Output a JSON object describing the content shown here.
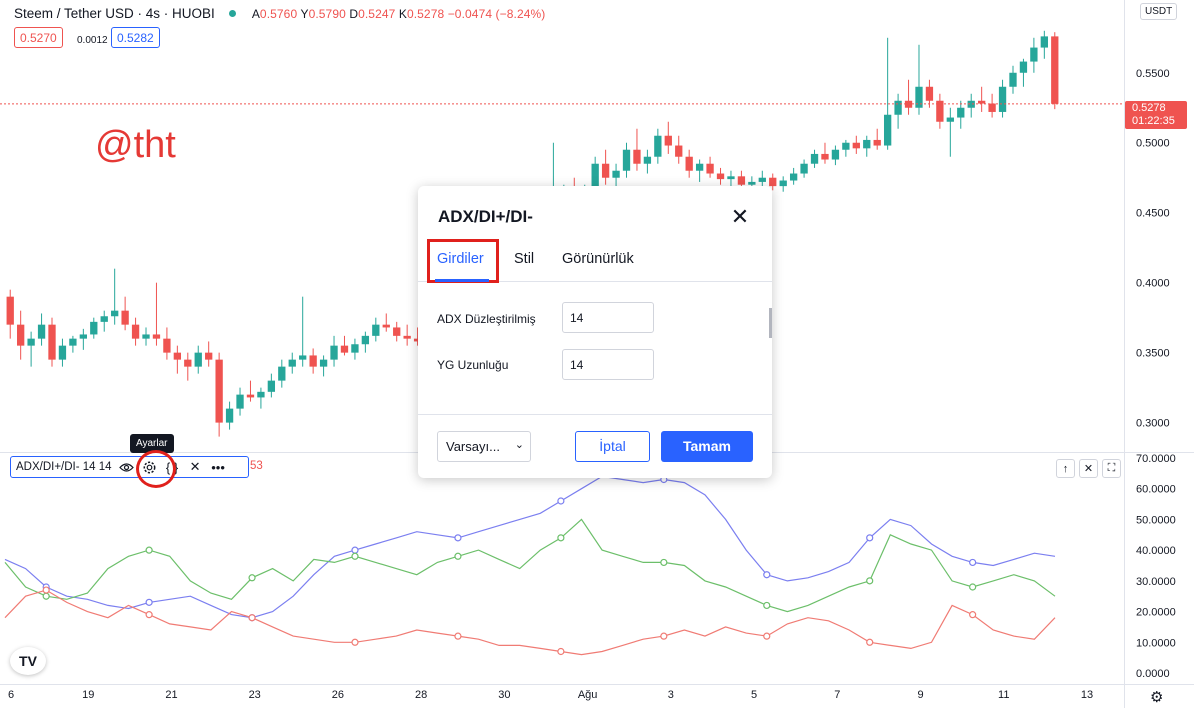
{
  "header": {
    "symbol": "Steem / Tether USD · 4s · HUOBI",
    "ohlc": {
      "open_label": "A",
      "open": "0.5760",
      "high_label": "Y",
      "high": "0.5790",
      "low_label": "D",
      "low": "0.5247",
      "close_label": "K",
      "close": "0.5278",
      "change": "−0.0474 (−8.24%)"
    },
    "sell_price": "0.5270",
    "spread": "0.0012",
    "buy_price": "0.5282"
  },
  "watermark": "@tht",
  "currency": "USDT",
  "last_price": {
    "price": "0.5278",
    "countdown": "01:22:35"
  },
  "tooltip": "Ayarlar",
  "indicator": {
    "label": "ADX/DI+/DI- 14 14",
    "value_suffix": "53",
    "icons": [
      "eye-icon",
      "gear-icon",
      "braces-icon",
      "close-icon",
      "more-icon"
    ]
  },
  "dialog": {
    "title": "ADX/DI+/DI-",
    "tabs": [
      {
        "label": "Girdiler",
        "active": true
      },
      {
        "label": "Stil",
        "active": false
      },
      {
        "label": "Görünürlük",
        "active": false
      }
    ],
    "fields": [
      {
        "label": "ADX Düzleştirilmiş",
        "value": "14"
      },
      {
        "label": "YG Uzunluğu",
        "value": "14"
      }
    ],
    "defaults_label": "Varsayı...",
    "cancel_label": "İptal",
    "ok_label": "Tamam"
  },
  "colors": {
    "up": "#26a69a",
    "down": "#ef5350",
    "accent": "#2962ff",
    "adx": "#7b7ff0",
    "diplus": "#6cbf6a",
    "diminus": "#f07b74"
  },
  "chart_data": [
    {
      "type": "candlestick",
      "symbol": "Steem / Tether USD",
      "y_ticks": [
        "0.5500",
        "0.5000",
        "0.4500",
        "0.4000",
        "0.3500",
        "0.3000"
      ],
      "y_range": [
        0.279,
        0.602
      ],
      "last_price": 0.5278,
      "candles": [
        [
          0.39,
          0.395,
          0.36,
          0.37
        ],
        [
          0.37,
          0.38,
          0.345,
          0.355
        ],
        [
          0.355,
          0.365,
          0.34,
          0.36
        ],
        [
          0.36,
          0.378,
          0.355,
          0.37
        ],
        [
          0.37,
          0.375,
          0.34,
          0.345
        ],
        [
          0.345,
          0.36,
          0.34,
          0.355
        ],
        [
          0.355,
          0.362,
          0.35,
          0.36
        ],
        [
          0.36,
          0.367,
          0.352,
          0.363
        ],
        [
          0.363,
          0.375,
          0.36,
          0.372
        ],
        [
          0.372,
          0.38,
          0.365,
          0.376
        ],
        [
          0.376,
          0.41,
          0.37,
          0.38
        ],
        [
          0.38,
          0.39,
          0.366,
          0.37
        ],
        [
          0.37,
          0.375,
          0.355,
          0.36
        ],
        [
          0.36,
          0.368,
          0.355,
          0.363
        ],
        [
          0.363,
          0.4,
          0.355,
          0.36
        ],
        [
          0.36,
          0.368,
          0.345,
          0.35
        ],
        [
          0.35,
          0.355,
          0.335,
          0.345
        ],
        [
          0.345,
          0.35,
          0.33,
          0.34
        ],
        [
          0.34,
          0.355,
          0.335,
          0.35
        ],
        [
          0.35,
          0.358,
          0.34,
          0.345
        ],
        [
          0.345,
          0.35,
          0.29,
          0.3
        ],
        [
          0.3,
          0.315,
          0.295,
          0.31
        ],
        [
          0.31,
          0.325,
          0.305,
          0.32
        ],
        [
          0.32,
          0.33,
          0.315,
          0.318
        ],
        [
          0.318,
          0.325,
          0.31,
          0.322
        ],
        [
          0.322,
          0.335,
          0.318,
          0.33
        ],
        [
          0.33,
          0.345,
          0.325,
          0.34
        ],
        [
          0.34,
          0.35,
          0.335,
          0.345
        ],
        [
          0.345,
          0.39,
          0.34,
          0.348
        ],
        [
          0.348,
          0.353,
          0.335,
          0.34
        ],
        [
          0.34,
          0.348,
          0.333,
          0.345
        ],
        [
          0.345,
          0.362,
          0.34,
          0.355
        ],
        [
          0.355,
          0.362,
          0.348,
          0.35
        ],
        [
          0.35,
          0.36,
          0.345,
          0.356
        ],
        [
          0.356,
          0.365,
          0.35,
          0.362
        ],
        [
          0.362,
          0.375,
          0.358,
          0.37
        ],
        [
          0.37,
          0.378,
          0.365,
          0.368
        ],
        [
          0.368,
          0.372,
          0.358,
          0.362
        ],
        [
          0.362,
          0.37,
          0.355,
          0.36
        ],
        [
          0.36,
          0.368,
          0.355,
          0.358
        ],
        [
          0.358,
          0.365,
          0.352,
          0.362
        ],
        [
          0.362,
          0.375,
          0.358,
          0.372
        ],
        [
          0.372,
          0.38,
          0.365,
          0.368
        ],
        [
          0.368,
          0.375,
          0.362,
          0.372
        ],
        [
          0.372,
          0.385,
          0.368,
          0.38
        ],
        [
          0.38,
          0.385,
          0.37,
          0.375
        ],
        [
          0.375,
          0.38,
          0.368,
          0.372
        ],
        [
          0.372,
          0.378,
          0.365,
          0.37
        ],
        [
          0.37,
          0.38,
          0.365,
          0.375
        ],
        [
          0.375,
          0.392,
          0.372,
          0.388
        ],
        [
          0.388,
          0.41,
          0.385,
          0.405
        ],
        [
          0.405,
          0.435,
          0.4,
          0.43
        ],
        [
          0.43,
          0.5,
          0.425,
          0.45
        ],
        [
          0.45,
          0.47,
          0.44,
          0.462
        ],
        [
          0.462,
          0.475,
          0.45,
          0.455
        ],
        [
          0.455,
          0.47,
          0.45,
          0.465
        ],
        [
          0.465,
          0.49,
          0.46,
          0.485
        ],
        [
          0.485,
          0.495,
          0.47,
          0.475
        ],
        [
          0.475,
          0.485,
          0.465,
          0.48
        ],
        [
          0.48,
          0.5,
          0.475,
          0.495
        ],
        [
          0.495,
          0.51,
          0.48,
          0.485
        ],
        [
          0.485,
          0.495,
          0.478,
          0.49
        ],
        [
          0.49,
          0.51,
          0.485,
          0.505
        ],
        [
          0.505,
          0.515,
          0.492,
          0.498
        ],
        [
          0.498,
          0.505,
          0.485,
          0.49
        ],
        [
          0.49,
          0.495,
          0.475,
          0.48
        ],
        [
          0.48,
          0.488,
          0.472,
          0.485
        ],
        [
          0.485,
          0.49,
          0.475,
          0.478
        ],
        [
          0.478,
          0.482,
          0.47,
          0.474
        ],
        [
          0.474,
          0.48,
          0.468,
          0.476
        ],
        [
          0.476,
          0.48,
          0.468,
          0.47
        ],
        [
          0.47,
          0.476,
          0.465,
          0.472
        ],
        [
          0.472,
          0.48,
          0.468,
          0.475
        ],
        [
          0.475,
          0.478,
          0.466,
          0.469
        ],
        [
          0.469,
          0.476,
          0.465,
          0.473
        ],
        [
          0.473,
          0.482,
          0.47,
          0.478
        ],
        [
          0.478,
          0.488,
          0.475,
          0.485
        ],
        [
          0.485,
          0.495,
          0.482,
          0.492
        ],
        [
          0.492,
          0.5,
          0.485,
          0.488
        ],
        [
          0.488,
          0.498,
          0.484,
          0.495
        ],
        [
          0.495,
          0.502,
          0.49,
          0.5
        ],
        [
          0.5,
          0.505,
          0.492,
          0.496
        ],
        [
          0.496,
          0.505,
          0.49,
          0.502
        ],
        [
          0.502,
          0.51,
          0.495,
          0.498
        ],
        [
          0.498,
          0.575,
          0.495,
          0.52
        ],
        [
          0.52,
          0.535,
          0.51,
          0.53
        ],
        [
          0.53,
          0.545,
          0.52,
          0.525
        ],
        [
          0.525,
          0.57,
          0.52,
          0.54
        ],
        [
          0.54,
          0.545,
          0.525,
          0.53
        ],
        [
          0.53,
          0.535,
          0.51,
          0.515
        ],
        [
          0.515,
          0.525,
          0.49,
          0.518
        ],
        [
          0.518,
          0.53,
          0.51,
          0.525
        ],
        [
          0.525,
          0.535,
          0.518,
          0.53
        ],
        [
          0.53,
          0.54,
          0.522,
          0.528
        ],
        [
          0.528,
          0.535,
          0.518,
          0.522
        ],
        [
          0.522,
          0.545,
          0.518,
          0.54
        ],
        [
          0.54,
          0.555,
          0.535,
          0.55
        ],
        [
          0.55,
          0.56,
          0.54,
          0.558
        ],
        [
          0.558,
          0.575,
          0.55,
          0.568
        ],
        [
          0.568,
          0.58,
          0.56,
          0.576
        ],
        [
          0.576,
          0.579,
          0.524,
          0.5278
        ]
      ]
    },
    {
      "type": "line",
      "title": "ADX/DI+/DI- 14 14",
      "y_ticks": [
        "70.0000",
        "60.0000",
        "50.0000",
        "40.0000",
        "30.0000",
        "20.0000",
        "10.0000",
        "0.0000"
      ],
      "y_range": [
        0,
        70
      ],
      "x_labels": [
        "6",
        "19",
        "21",
        "23",
        "26",
        "28",
        "30",
        "Ağu",
        "3",
        "5",
        "7",
        "9",
        "11",
        "13"
      ],
      "series": [
        {
          "values": [
            37,
            34,
            28,
            25,
            24,
            22,
            21,
            23,
            24,
            25,
            22,
            19,
            18,
            20,
            25,
            32,
            38,
            40,
            42,
            44,
            46,
            45,
            44,
            46,
            48,
            50,
            52,
            56,
            60,
            64,
            63,
            62,
            63,
            62,
            58,
            50,
            40,
            32,
            30,
            31,
            33,
            36,
            44,
            50,
            48,
            42,
            38,
            36,
            35,
            37,
            39,
            38
          ]
        },
        {
          "values": [
            36,
            28,
            25,
            24,
            26,
            34,
            38,
            40,
            38,
            30,
            26,
            24,
            31,
            34,
            30,
            37,
            36,
            38,
            36,
            34,
            32,
            36,
            38,
            40,
            37,
            34,
            40,
            44,
            50,
            40,
            38,
            36,
            36,
            35,
            30,
            28,
            25,
            22,
            20,
            22,
            25,
            28,
            30,
            45,
            42,
            40,
            30,
            28,
            30,
            32,
            30,
            25
          ]
        },
        {
          "values": [
            18,
            25,
            27,
            23,
            20,
            18,
            22,
            19,
            16,
            15,
            14,
            20,
            18,
            15,
            12,
            11,
            10,
            10,
            11,
            12,
            14,
            13,
            12,
            11,
            9,
            9,
            8,
            7,
            6,
            7,
            9,
            11,
            12,
            14,
            12,
            15,
            13,
            12,
            16,
            18,
            17,
            14,
            10,
            9,
            8,
            10,
            22,
            19,
            14,
            12,
            11,
            18
          ]
        }
      ]
    }
  ]
}
